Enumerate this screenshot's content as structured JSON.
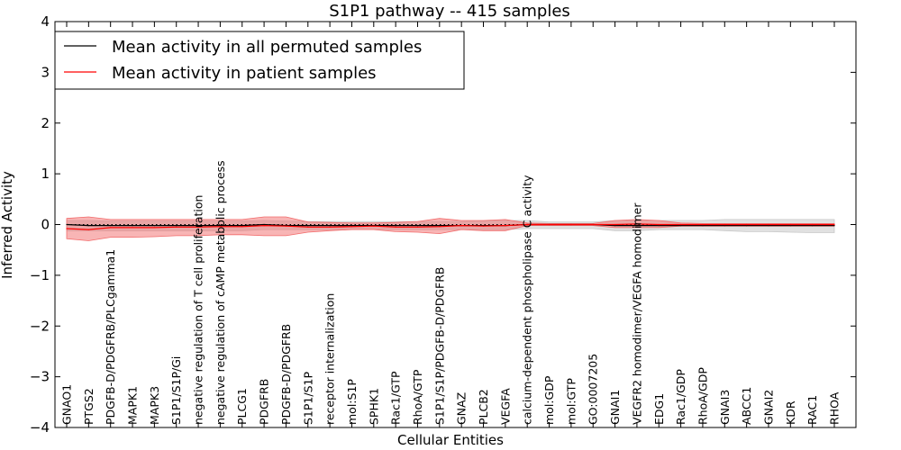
{
  "chart_data": {
    "type": "line",
    "title": "S1P1 pathway -- 415 samples",
    "xlabel": "Cellular Entities",
    "ylabel": "Inferred Activity",
    "ylim": [
      -4,
      4
    ],
    "yticks": [
      4,
      3,
      2,
      1,
      0,
      -1,
      -2,
      -3,
      -4
    ],
    "ytick_labels": [
      "4",
      "3",
      "2",
      "1",
      "0",
      "−1",
      "−2",
      "−3",
      "−4"
    ],
    "legend_position": "top-left",
    "categories": [
      "GNAO1",
      "PTGS2",
      "PDGFB-D/PDGFRB/PLCgamma1",
      "MAPK1",
      "MAPK3",
      "S1P1/S1P/Gi",
      "negative regulation of T cell proliferation",
      "negative regulation of cAMP metabolic process",
      "PLCG1",
      "PDGFRB",
      "PDGFB-D/PDGFRB",
      "S1P1/S1P",
      "receptor internalization",
      "mol:S1P",
      "SPHK1",
      "Rac1/GTP",
      "RhoA/GTP",
      "S1P1/S1P/PDGFB-D/PDGFRB",
      "GNAZ",
      "PLCB2",
      "VEGFA",
      "calcium-dependent phospholipase C activity",
      "mol:GDP",
      "mol:GTP",
      "GO:0007205",
      "GNAI1",
      "VEGFR2 homodimer/VEGFA homodimer",
      "EDG1",
      "Rac1/GDP",
      "RhoA/GDP",
      "GNAI3",
      "ABCC1",
      "GNAI2",
      "KDR",
      "RAC1",
      "RHOA"
    ],
    "series": [
      {
        "name": "Mean activity in all permuted samples",
        "color": "#000000",
        "band_color": "#c8c8c8",
        "values": [
          0.0,
          -0.02,
          -0.02,
          -0.02,
          -0.02,
          -0.02,
          -0.02,
          -0.02,
          -0.02,
          0.0,
          -0.02,
          -0.02,
          -0.02,
          -0.02,
          -0.02,
          -0.02,
          -0.02,
          -0.02,
          -0.02,
          -0.02,
          -0.02,
          0.0,
          0.0,
          0.0,
          0.0,
          -0.02,
          -0.02,
          -0.02,
          -0.02,
          -0.02,
          -0.02,
          -0.02,
          -0.02,
          -0.02,
          -0.02,
          -0.02
        ],
        "upper": [
          0.08,
          0.08,
          0.07,
          0.07,
          0.07,
          0.07,
          0.07,
          0.07,
          0.07,
          0.08,
          0.07,
          0.06,
          0.06,
          0.06,
          0.06,
          0.06,
          0.06,
          0.06,
          0.06,
          0.07,
          0.08,
          0.08,
          0.05,
          0.05,
          0.05,
          0.08,
          0.08,
          0.08,
          0.08,
          0.08,
          0.1,
          0.1,
          0.1,
          0.1,
          0.1,
          0.1
        ],
        "lower": [
          -0.12,
          -0.12,
          -0.12,
          -0.12,
          -0.12,
          -0.12,
          -0.12,
          -0.12,
          -0.12,
          -0.1,
          -0.1,
          -0.1,
          -0.1,
          -0.1,
          -0.1,
          -0.1,
          -0.1,
          -0.1,
          -0.1,
          -0.1,
          -0.1,
          -0.08,
          -0.08,
          -0.08,
          -0.08,
          -0.12,
          -0.12,
          -0.1,
          -0.1,
          -0.1,
          -0.12,
          -0.14,
          -0.14,
          -0.15,
          -0.16,
          -0.16
        ]
      },
      {
        "name": "Mean activity in patient samples",
        "color": "#ff0000",
        "band_color": "#f26b6b",
        "values": [
          -0.08,
          -0.1,
          -0.06,
          -0.06,
          -0.06,
          -0.05,
          -0.05,
          -0.04,
          -0.04,
          -0.02,
          -0.03,
          -0.05,
          -0.05,
          -0.04,
          -0.03,
          -0.05,
          -0.05,
          -0.04,
          -0.02,
          -0.03,
          -0.02,
          0.0,
          0.0,
          0.0,
          0.0,
          0.0,
          0.01,
          0.0,
          0.0,
          0.0,
          0.0,
          0.0,
          0.0,
          0.0,
          0.0,
          0.0
        ],
        "upper": [
          0.12,
          0.15,
          0.1,
          0.1,
          0.1,
          0.1,
          0.1,
          0.1,
          0.1,
          0.15,
          0.15,
          0.05,
          0.04,
          0.03,
          0.03,
          0.04,
          0.06,
          0.12,
          0.08,
          0.08,
          0.1,
          0.03,
          0.02,
          0.02,
          0.02,
          0.08,
          0.1,
          0.08,
          0.03,
          0.02,
          0.02,
          0.02,
          0.02,
          0.02,
          0.02,
          0.02
        ],
        "lower": [
          -0.28,
          -0.32,
          -0.25,
          -0.25,
          -0.24,
          -0.22,
          -0.22,
          -0.2,
          -0.2,
          -0.22,
          -0.22,
          -0.15,
          -0.12,
          -0.1,
          -0.1,
          -0.14,
          -0.15,
          -0.18,
          -0.1,
          -0.12,
          -0.12,
          -0.02,
          -0.02,
          -0.02,
          -0.02,
          -0.06,
          -0.06,
          -0.06,
          -0.03,
          -0.03,
          -0.03,
          -0.03,
          -0.03,
          -0.03,
          -0.03,
          -0.03
        ]
      }
    ],
    "reference_line": {
      "style": "dotted",
      "value": 0
    }
  }
}
